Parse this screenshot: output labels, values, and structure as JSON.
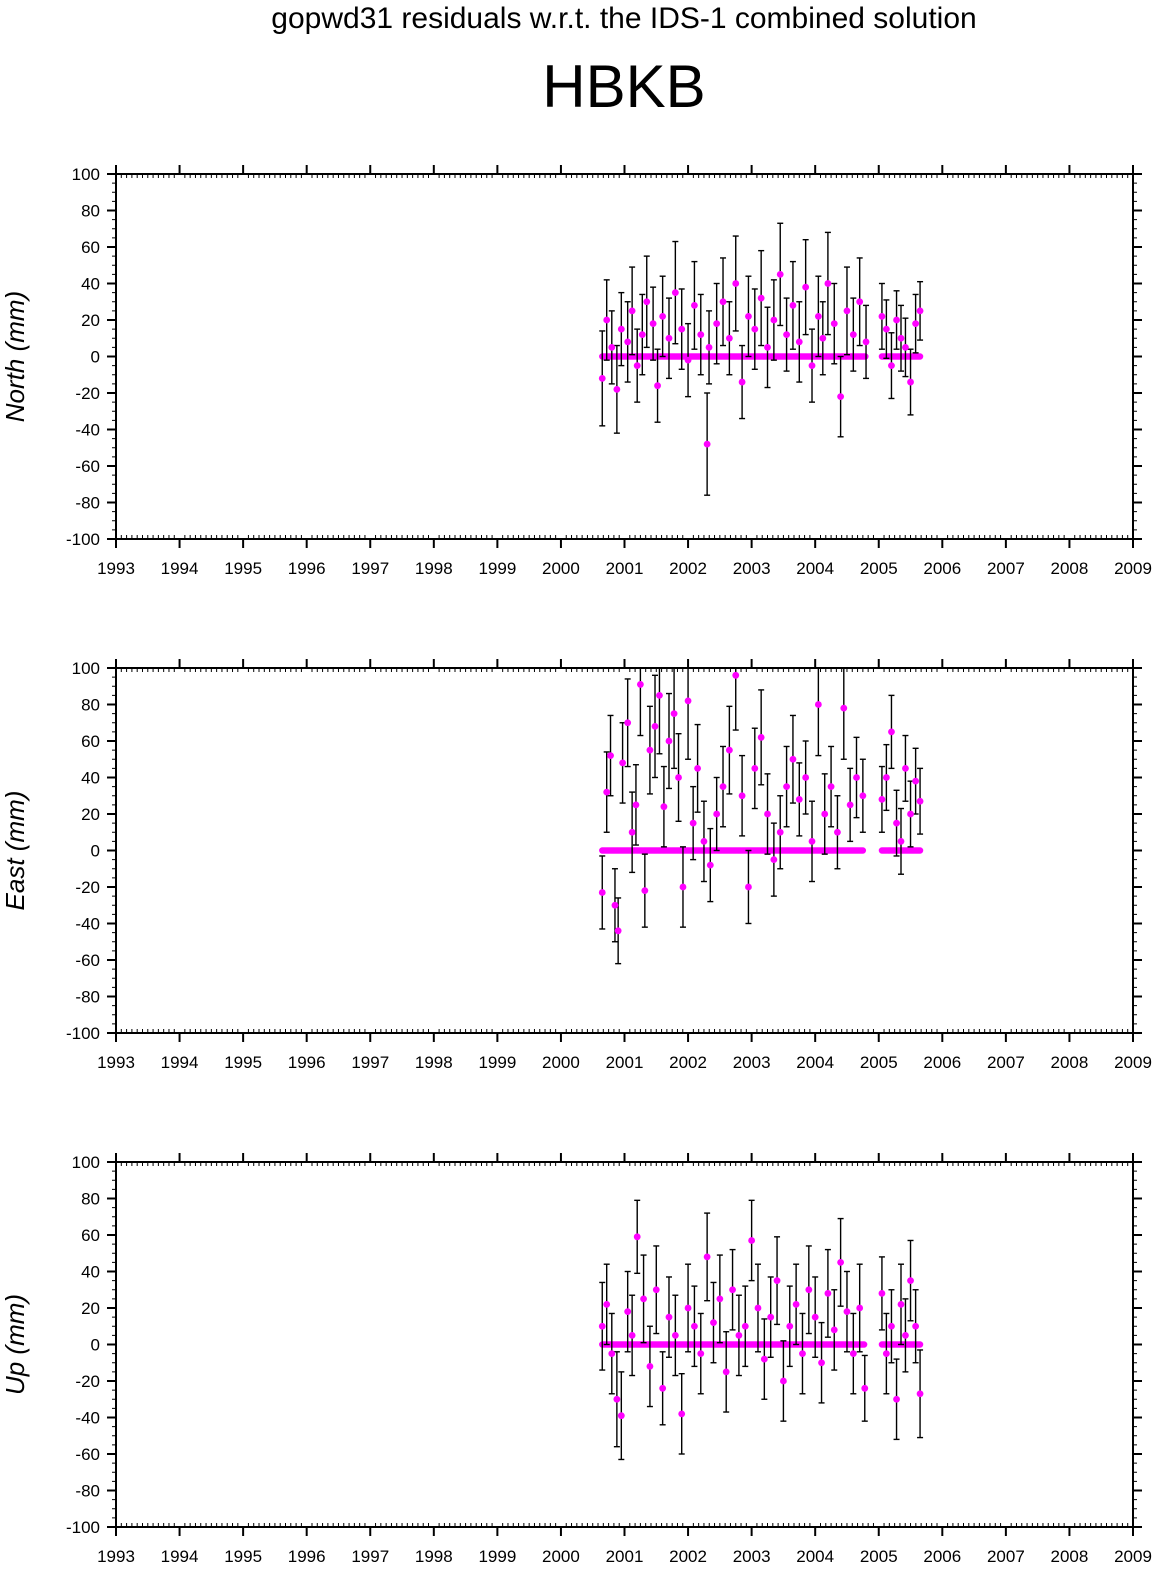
{
  "title": "gopwd31 residuals w.r.t. the IDS-1 combined solution",
  "station": "HBKB",
  "colors": {
    "axes": "#000000",
    "errorbar": "#000000",
    "point": "#ff00ff",
    "background": "#ffffff"
  },
  "chart_data": [
    {
      "type": "scatter",
      "ylabel": "North (mm)",
      "xlim": [
        1993,
        2009
      ],
      "ylim": [
        -100,
        100
      ],
      "xticks": [
        "1993",
        "1994",
        "1995",
        "1996",
        "1997",
        "1998",
        "1999",
        "2000",
        "2001",
        "2002",
        "2003",
        "2004",
        "2005",
        "2006",
        "2007",
        "2008",
        "2009"
      ],
      "yticks": [
        "100",
        "80",
        "60",
        "40",
        "20",
        "0",
        "-20",
        "-40",
        "-60",
        "-80",
        "-100"
      ],
      "grid": false,
      "series": [
        {
          "x": [
            2000.65,
            2000.72,
            2000.8,
            2000.88,
            2000.95,
            2001.05,
            2001.12,
            2001.2,
            2001.28,
            2001.35,
            2001.45,
            2001.52,
            2001.6,
            2001.7,
            2001.8,
            2001.9,
            2002.0,
            2002.1,
            2002.2,
            2002.3,
            2002.33,
            2002.45,
            2002.55,
            2002.65,
            2002.75,
            2002.85,
            2002.95,
            2003.05,
            2003.15,
            2003.25,
            2003.35,
            2003.45,
            2003.55,
            2003.65,
            2003.75,
            2003.85,
            2003.95,
            2004.05,
            2004.12,
            2004.2,
            2004.3,
            2004.4,
            2004.5,
            2004.6,
            2004.7,
            2004.8,
            2005.05,
            2005.12,
            2005.2,
            2005.28,
            2005.35,
            2005.42,
            2005.5,
            2005.58,
            2005.65
          ],
          "y": [
            -12,
            20,
            5,
            -18,
            15,
            8,
            25,
            -5,
            12,
            30,
            18,
            -16,
            22,
            10,
            35,
            15,
            -2,
            28,
            12,
            -48,
            5,
            18,
            30,
            10,
            40,
            -14,
            22,
            15,
            32,
            5,
            20,
            45,
            12,
            28,
            8,
            38,
            -5,
            22,
            10,
            40,
            18,
            -22,
            25,
            12,
            30,
            8,
            22,
            15,
            -5,
            20,
            10,
            5,
            -14,
            18,
            25
          ],
          "err": [
            26,
            22,
            20,
            24,
            20,
            22,
            24,
            20,
            22,
            25,
            20,
            20,
            22,
            22,
            28,
            22,
            20,
            24,
            22,
            28,
            20,
            22,
            24,
            20,
            26,
            20,
            22,
            22,
            26,
            22,
            22,
            28,
            20,
            24,
            22,
            26,
            20,
            22,
            20,
            28,
            22,
            22,
            24,
            20,
            24,
            20,
            18,
            16,
            18,
            16,
            18,
            16,
            18,
            16,
            16
          ]
        }
      ]
    },
    {
      "type": "scatter",
      "ylabel": "East (mm)",
      "xlim": [
        1993,
        2009
      ],
      "ylim": [
        -100,
        100
      ],
      "xticks": [
        "1993",
        "1994",
        "1995",
        "1996",
        "1997",
        "1998",
        "1999",
        "2000",
        "2001",
        "2002",
        "2003",
        "2004",
        "2005",
        "2006",
        "2007",
        "2008",
        "2009"
      ],
      "yticks": [
        "100",
        "80",
        "60",
        "40",
        "20",
        "0",
        "-20",
        "-40",
        "-60",
        "-80",
        "-100"
      ],
      "grid": false,
      "series": [
        {
          "x": [
            2000.65,
            2000.72,
            2000.78,
            2000.85,
            2000.9,
            2000.97,
            2001.05,
            2001.12,
            2001.18,
            2001.25,
            2001.32,
            2001.4,
            2001.48,
            2001.55,
            2001.62,
            2001.7,
            2001.78,
            2001.85,
            2001.92,
            2002.0,
            2002.08,
            2002.15,
            2002.25,
            2002.35,
            2002.45,
            2002.55,
            2002.65,
            2002.75,
            2002.85,
            2002.95,
            2003.05,
            2003.15,
            2003.25,
            2003.35,
            2003.45,
            2003.55,
            2003.65,
            2003.75,
            2003.85,
            2003.95,
            2004.05,
            2004.15,
            2004.25,
            2004.35,
            2004.45,
            2004.55,
            2004.65,
            2004.75,
            2005.05,
            2005.12,
            2005.2,
            2005.28,
            2005.35,
            2005.42,
            2005.5,
            2005.58,
            2005.65
          ],
          "y": [
            -23,
            32,
            52,
            -30,
            -44,
            48,
            70,
            10,
            25,
            91,
            -22,
            55,
            68,
            85,
            24,
            60,
            75,
            40,
            -20,
            82,
            15,
            45,
            5,
            -8,
            20,
            35,
            55,
            96,
            30,
            -20,
            45,
            62,
            20,
            -5,
            10,
            35,
            50,
            28,
            40,
            5,
            80,
            20,
            35,
            10,
            78,
            25,
            40,
            30,
            28,
            40,
            65,
            15,
            5,
            45,
            20,
            38,
            27
          ],
          "err": [
            20,
            22,
            22,
            20,
            18,
            22,
            24,
            22,
            22,
            28,
            20,
            24,
            28,
            32,
            22,
            26,
            30,
            24,
            22,
            32,
            20,
            24,
            22,
            20,
            20,
            22,
            24,
            30,
            22,
            20,
            22,
            26,
            22,
            20,
            20,
            22,
            24,
            20,
            20,
            22,
            28,
            22,
            22,
            20,
            28,
            20,
            22,
            20,
            18,
            18,
            20,
            18,
            18,
            18,
            18,
            18,
            18
          ]
        }
      ]
    },
    {
      "type": "scatter",
      "ylabel": "Up (mm)",
      "xlim": [
        1993,
        2009
      ],
      "ylim": [
        -100,
        100
      ],
      "xticks": [
        "1993",
        "1994",
        "1995",
        "1996",
        "1997",
        "1998",
        "1999",
        "2000",
        "2001",
        "2002",
        "2003",
        "2004",
        "2005",
        "2006",
        "2007",
        "2008",
        "2009"
      ],
      "yticks": [
        "100",
        "80",
        "60",
        "40",
        "20",
        "0",
        "-20",
        "-40",
        "-60",
        "-80",
        "-100"
      ],
      "grid": false,
      "series": [
        {
          "x": [
            2000.65,
            2000.72,
            2000.8,
            2000.88,
            2000.95,
            2001.05,
            2001.12,
            2001.2,
            2001.3,
            2001.4,
            2001.5,
            2001.6,
            2001.7,
            2001.8,
            2001.9,
            2002.0,
            2002.1,
            2002.2,
            2002.3,
            2002.4,
            2002.5,
            2002.6,
            2002.7,
            2002.8,
            2002.9,
            2003.0,
            2003.1,
            2003.2,
            2003.3,
            2003.4,
            2003.5,
            2003.6,
            2003.7,
            2003.8,
            2003.9,
            2004.0,
            2004.1,
            2004.2,
            2004.3,
            2004.4,
            2004.5,
            2004.6,
            2004.7,
            2004.78,
            2005.05,
            2005.12,
            2005.2,
            2005.28,
            2005.35,
            2005.42,
            2005.5,
            2005.58,
            2005.65
          ],
          "y": [
            10,
            22,
            -5,
            -30,
            -39,
            18,
            5,
            59,
            25,
            -12,
            30,
            -24,
            15,
            5,
            -38,
            20,
            10,
            -5,
            48,
            12,
            25,
            -15,
            30,
            5,
            10,
            57,
            20,
            -8,
            15,
            35,
            -20,
            10,
            22,
            -5,
            30,
            15,
            -10,
            28,
            8,
            45,
            18,
            -5,
            20,
            -24,
            28,
            -5,
            10,
            -30,
            22,
            5,
            35,
            10,
            -27
          ],
          "err": [
            24,
            22,
            22,
            26,
            24,
            22,
            22,
            20,
            24,
            22,
            24,
            20,
            22,
            22,
            22,
            24,
            22,
            22,
            24,
            22,
            24,
            22,
            22,
            22,
            22,
            22,
            24,
            22,
            22,
            24,
            22,
            22,
            22,
            22,
            24,
            22,
            22,
            24,
            22,
            24,
            22,
            22,
            24,
            18,
            20,
            22,
            20,
            22,
            22,
            20,
            22,
            20,
            24
          ]
        }
      ]
    }
  ]
}
